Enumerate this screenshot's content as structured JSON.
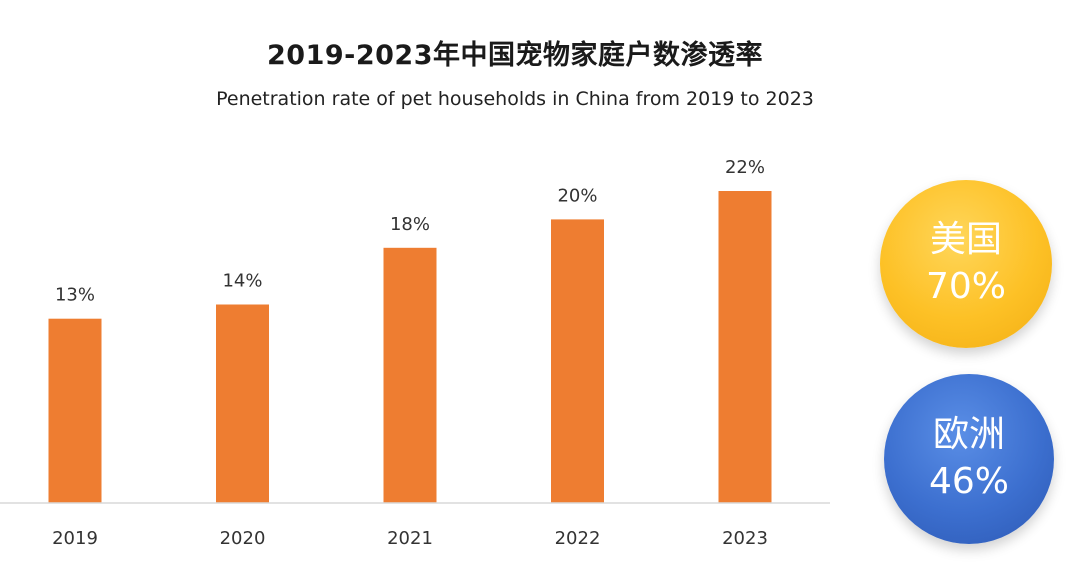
{
  "chart_data": {
    "type": "bar",
    "title": "2019-2023年中国宠物家庭户数渗透率",
    "subtitle": "Penetration rate of pet households in China from 2019 to 2023",
    "categories": [
      "2019",
      "2020",
      "2021",
      "2022",
      "2023"
    ],
    "values": [
      13,
      14,
      18,
      20,
      22
    ],
    "value_labels": [
      "13%",
      "14%",
      "18%",
      "20%",
      "22%"
    ],
    "unit": "%",
    "xlabel": "",
    "ylabel": "",
    "ylim": [
      0,
      23
    ],
    "grid": false,
    "bar_color": "#ee7d31"
  },
  "callouts": [
    {
      "region": "美国",
      "value": "70%",
      "color": "#fdc126"
    },
    {
      "region": "欧洲",
      "value": "46%",
      "color": "#3c6fcf"
    }
  ]
}
